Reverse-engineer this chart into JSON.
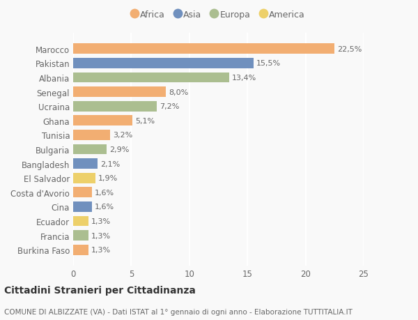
{
  "countries": [
    "Marocco",
    "Pakistan",
    "Albania",
    "Senegal",
    "Ucraina",
    "Ghana",
    "Tunisia",
    "Bulgaria",
    "Bangladesh",
    "El Salvador",
    "Costa d'Avorio",
    "Cina",
    "Ecuador",
    "Francia",
    "Burkina Faso"
  ],
  "values": [
    22.5,
    15.5,
    13.4,
    8.0,
    7.2,
    5.1,
    3.2,
    2.9,
    2.1,
    1.9,
    1.6,
    1.6,
    1.3,
    1.3,
    1.3
  ],
  "labels": [
    "22,5%",
    "15,5%",
    "13,4%",
    "8,0%",
    "7,2%",
    "5,1%",
    "3,2%",
    "2,9%",
    "2,1%",
    "1,9%",
    "1,6%",
    "1,6%",
    "1,3%",
    "1,3%",
    "1,3%"
  ],
  "continents": [
    "Africa",
    "Asia",
    "Europa",
    "Africa",
    "Europa",
    "Africa",
    "Africa",
    "Europa",
    "Asia",
    "America",
    "Africa",
    "Asia",
    "America",
    "Europa",
    "Africa"
  ],
  "colors": {
    "Africa": "#F2AE72",
    "Asia": "#7090BE",
    "Europa": "#ABBE90",
    "America": "#EDD06A"
  },
  "legend_order": [
    "Africa",
    "Asia",
    "Europa",
    "America"
  ],
  "title": "Cittadini Stranieri per Cittadinanza",
  "subtitle": "COMUNE DI ALBIZZATE (VA) - Dati ISTAT al 1° gennaio di ogni anno - Elaborazione TUTTITALIA.IT",
  "xlim": [
    0,
    25
  ],
  "xticks": [
    0,
    5,
    10,
    15,
    20,
    25
  ],
  "background_color": "#f9f9f9",
  "grid_color": "#ffffff",
  "bar_height": 0.72,
  "label_fontsize": 8.0,
  "ytick_fontsize": 8.5,
  "xtick_fontsize": 8.5,
  "title_fontsize": 10,
  "subtitle_fontsize": 7.5,
  "legend_fontsize": 9
}
